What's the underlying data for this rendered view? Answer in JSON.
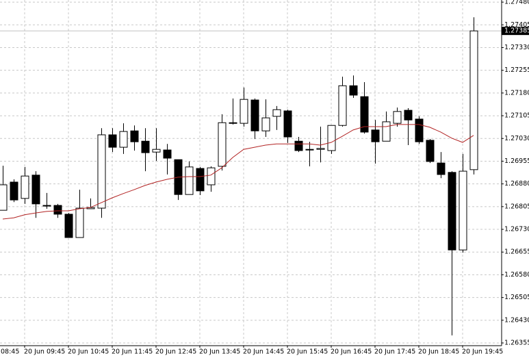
{
  "chart_data": {
    "type": "candlestick",
    "ylim": [
      1.26346,
      1.27487
    ],
    "yticks": [
      {
        "value": 1.2748,
        "label": "1.27480"
      },
      1.27405,
      {
        "value": 1.2733,
        "label": "1.27330"
      },
      1.27255,
      {
        "value": 1.2718,
        "label": "1.27180"
      },
      1.27105,
      {
        "value": 1.2703,
        "label": "1.27030"
      },
      1.26955,
      {
        "value": 1.2688,
        "label": "1.26880"
      },
      1.26805,
      {
        "value": 1.2673,
        "label": "1.26730"
      },
      1.26655,
      {
        "value": 1.2658,
        "label": "1.26580"
      },
      1.26505,
      {
        "value": 1.2643,
        "label": "1.26430"
      },
      1.26355
    ],
    "x_labels": [
      "08:45",
      "20 Jun 09:45",
      "20 Jun 10:45",
      "20 Jun 11:45",
      "20 Jun 12:45",
      "20 Jun 13:45",
      "20 Jun 14:45",
      "20 Jun 15:45",
      "20 Jun 16:45",
      "20 Jun 17:45",
      "20 Jun 18:45",
      "20 Jun 19:45"
    ],
    "grid": true,
    "up_color": "#ffffff",
    "down_color": "#000000",
    "open": [
      1.26793,
      1.26886,
      1.26832,
      1.26909,
      1.26809,
      1.26809,
      1.2678,
      1.26703,
      1.26798,
      1.268,
      1.27042,
      1.27001,
      1.27055,
      1.27021,
      1.26985,
      1.26992,
      1.2696,
      1.26845,
      1.26931,
      1.26877,
      1.26938,
      1.2708,
      1.2708,
      1.27157,
      1.27055,
      1.27103,
      1.27121,
      1.27021,
      1.26994,
      1.26994,
      1.2699,
      1.27073,
      1.27204,
      1.27168,
      1.27058,
      1.27021,
      1.2708,
      1.27123,
      1.27094,
      1.27024,
      1.26949,
      1.26918,
      1.26662,
      1.26927
    ],
    "high": [
      1.2694,
      1.26895,
      1.26936,
      1.26922,
      1.2685,
      1.26814,
      1.26784,
      1.26861,
      1.26832,
      1.27064,
      1.27064,
      1.2708,
      1.27073,
      1.27064,
      1.27064,
      1.27012,
      1.2696,
      1.26954,
      1.26936,
      1.26938,
      1.2711,
      1.27162,
      1.27198,
      1.27162,
      1.27159,
      1.27137,
      1.27125,
      1.27035,
      1.27019,
      1.27069,
      1.27073,
      1.27234,
      1.27238,
      1.27216,
      1.27091,
      1.27119,
      1.27132,
      1.2713,
      1.27103,
      1.27028,
      1.26985,
      1.26922,
      1.26979,
      1.2743
    ],
    "low": [
      1.26793,
      1.2682,
      1.26814,
      1.26768,
      1.26798,
      1.26768,
      1.26703,
      1.26703,
      1.26798,
      1.26768,
      1.26985,
      1.26979,
      1.2699,
      1.26922,
      1.26956,
      1.26911,
      1.26827,
      1.26845,
      1.26843,
      1.26854,
      1.26924,
      1.27076,
      1.27069,
      1.27028,
      1.27035,
      1.27058,
      1.27015,
      1.26985,
      1.26938,
      1.26951,
      1.26979,
      1.27069,
      1.27164,
      1.27046,
      1.26947,
      1.27021,
      1.27069,
      1.27008,
      1.27012,
      1.26949,
      1.26899,
      1.2638,
      1.26653,
      1.26911
    ],
    "close": [
      1.26877,
      1.26827,
      1.26906,
      1.26814,
      1.26807,
      1.2678,
      1.26703,
      1.268,
      1.26802,
      1.27042,
      1.27001,
      1.27053,
      1.27019,
      1.26983,
      1.26994,
      1.26965,
      1.26845,
      1.26936,
      1.26857,
      1.26933,
      1.27082,
      1.27082,
      1.27159,
      1.27055,
      1.27098,
      1.27125,
      1.27035,
      1.2699,
      1.26994,
      1.26997,
      1.27073,
      1.27204,
      1.27173,
      1.27051,
      1.27019,
      1.27085,
      1.27119,
      1.27091,
      1.27019,
      1.26954,
      1.26911,
      1.26662,
      1.26922,
      1.27385
    ],
    "ma": {
      "color": "#b22222",
      "values": [
        1.26764,
        1.26768,
        1.26778,
        1.26784,
        1.26789,
        1.26791,
        1.26791,
        1.26798,
        1.26802,
        1.26818,
        1.26834,
        1.26848,
        1.26861,
        1.26875,
        1.26886,
        1.26895,
        1.26902,
        1.26904,
        1.26904,
        1.26909,
        1.26933,
        1.26967,
        1.26994,
        1.27001,
        1.27008,
        1.27012,
        1.27012,
        1.27012,
        1.27012,
        1.27008,
        1.27017,
        1.27037,
        1.27058,
        1.27069,
        1.27069,
        1.27069,
        1.27076,
        1.27076,
        1.27076,
        1.27067,
        1.27051,
        1.27031,
        1.27017,
        1.2704
      ]
    },
    "last_price": 1.27385
  }
}
